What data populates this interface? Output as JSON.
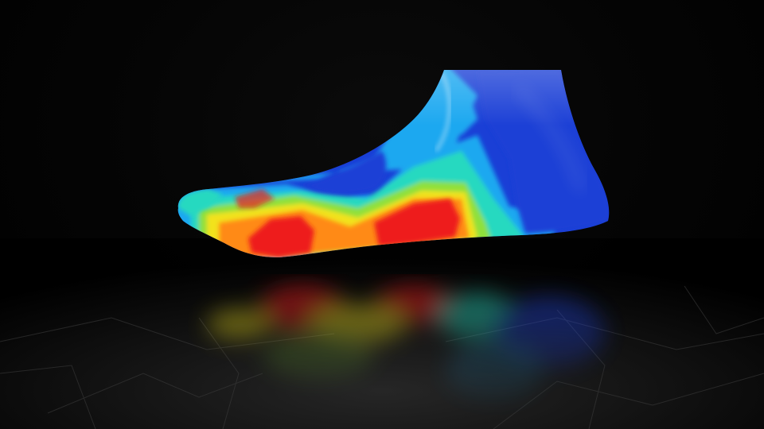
{
  "scene": {
    "subject": "foot-last-pressure-map",
    "colors": {
      "background": "#000000",
      "floor": "#141414",
      "cold": "#1a3fd6",
      "cool": "#1fa8f0",
      "mid": "#27d9c0",
      "warm": "#8fe03a",
      "hot_yellow": "#f2e21c",
      "hot_orange": "#ff8a12",
      "peak": "#ee1a1a"
    }
  }
}
